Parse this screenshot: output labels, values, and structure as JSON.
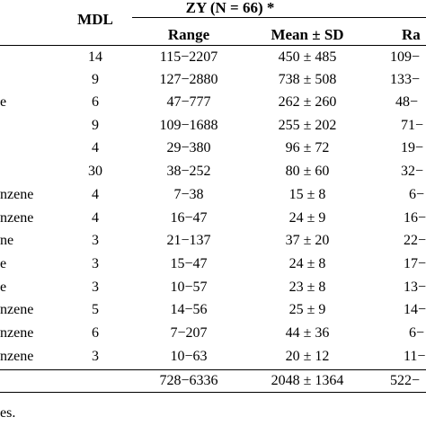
{
  "table": {
    "group_header": "ZY (N = 66) *",
    "headers": {
      "mdl": "MDL",
      "range": "Range",
      "mean_sd": "Mean ± SD",
      "range_cut": "Ra"
    },
    "rows": [
      {
        "name": "",
        "mdl": "14",
        "range": "115−2207",
        "mean_sd": "450 ± 485",
        "range_cut": "109−"
      },
      {
        "name": "",
        "mdl": "9",
        "range": "127−2880",
        "mean_sd": "738 ± 508",
        "range_cut": "133−"
      },
      {
        "name": "e",
        "mdl": "6",
        "range": "47−777",
        "mean_sd": "262 ± 260",
        "range_cut": "48−"
      },
      {
        "name": "",
        "mdl": "9",
        "range": "109−1688",
        "mean_sd": "255 ± 202",
        "range_cut": "71−"
      },
      {
        "name": "",
        "mdl": "4",
        "range": "29−380",
        "mean_sd": "96 ± 72",
        "range_cut": "19−"
      },
      {
        "name": "",
        "mdl": "30",
        "range": "38−252",
        "mean_sd": "80 ± 60",
        "range_cut": "32−"
      },
      {
        "name": "nzene",
        "mdl": "4",
        "range": "7−38",
        "mean_sd": "15 ± 8",
        "range_cut": "6−"
      },
      {
        "name": "nzene",
        "mdl": "4",
        "range": "16−47",
        "mean_sd": "24 ± 9",
        "range_cut": "16−"
      },
      {
        "name": "ne",
        "mdl": "3",
        "range": "21−137",
        "mean_sd": "37 ± 20",
        "range_cut": "22−"
      },
      {
        "name": "e",
        "mdl": "3",
        "range": "15−47",
        "mean_sd": "24 ± 8",
        "range_cut": "17−"
      },
      {
        "name": "e",
        "mdl": "3",
        "range": "10−57",
        "mean_sd": "23 ± 8",
        "range_cut": "13−"
      },
      {
        "name": "nzene",
        "mdl": "5",
        "range": "14−56",
        "mean_sd": "25 ± 9",
        "range_cut": "14−"
      },
      {
        "name": "nzene",
        "mdl": "6",
        "range": "7−207",
        "mean_sd": "44 ± 36",
        "range_cut": "6−"
      },
      {
        "name": "nzene",
        "mdl": "3",
        "range": "10−63",
        "mean_sd": "20 ± 12",
        "range_cut": "11−"
      },
      {
        "name": "",
        "mdl": "",
        "range": "728−6336",
        "mean_sd": "2048 ± 1364",
        "range_cut": "522−"
      }
    ],
    "footnote": "es."
  }
}
